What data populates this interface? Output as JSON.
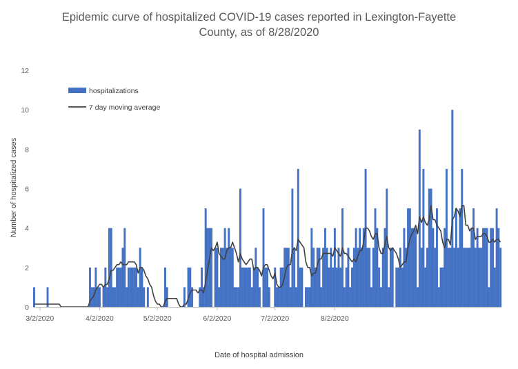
{
  "chart_data": {
    "type": "bar",
    "title_line1": "Epidemic curve of hospitalized COVID-19 cases reported in Lexington-Fayette",
    "title_line2": "County, as of 8/28/2020",
    "xlabel": "Date of hospital admission",
    "ylabel": "Number  of hospitalized cases",
    "ylim": [
      0,
      12
    ],
    "yticks": [
      "0",
      "2",
      "4",
      "6",
      "8",
      "10",
      "12"
    ],
    "grid": false,
    "legend_placement": "top-left",
    "x_start": "2020-02-28",
    "x_tick_labels": [
      "3/2/2020",
      "4/2/2020",
      "5/2/2020",
      "6/2/2020",
      "7/2/2020",
      "8/2/2020"
    ],
    "x_tick_dates": [
      "2020-03-02",
      "2020-04-02",
      "2020-05-02",
      "2020-06-02",
      "2020-07-02",
      "2020-08-02"
    ],
    "series": [
      {
        "name": "hospitalizations",
        "kind": "bar",
        "color": "#4472C4",
        "values": [
          1,
          0,
          0,
          0,
          0,
          0,
          0,
          1,
          0,
          0,
          0,
          0,
          0,
          0,
          0,
          0,
          0,
          0,
          0,
          0,
          0,
          0,
          0,
          0,
          0,
          0,
          0,
          0,
          0,
          2,
          1,
          1,
          2,
          1,
          1,
          0,
          1,
          2,
          1,
          4,
          4,
          1,
          1,
          2,
          2,
          2,
          3,
          4,
          1,
          2,
          2,
          2,
          2,
          2,
          1,
          3,
          2,
          1,
          0,
          1,
          0,
          0,
          0,
          0,
          0,
          0,
          0,
          0,
          2,
          1,
          0,
          0,
          0,
          0,
          0,
          0,
          0,
          0,
          1,
          0,
          2,
          2,
          1,
          0,
          0,
          0,
          1,
          2,
          1,
          5,
          4,
          4,
          4,
          0,
          3,
          3,
          1,
          3,
          3,
          4,
          3,
          4,
          3,
          3,
          1,
          1,
          1,
          6,
          2,
          2,
          2,
          2,
          2,
          1,
          2,
          3,
          2,
          1,
          0,
          5,
          2,
          2,
          1,
          0,
          0,
          2,
          1,
          1,
          2,
          2,
          3,
          3,
          3,
          1,
          6,
          3,
          1,
          7,
          2,
          2,
          0,
          1,
          1,
          1,
          4,
          3,
          2,
          3,
          3,
          1,
          3,
          4,
          3,
          2,
          3,
          2,
          4,
          2,
          3,
          2,
          5,
          1,
          2,
          3,
          1,
          2,
          3,
          4,
          3,
          4,
          3,
          4,
          7,
          3,
          3,
          1,
          3,
          5,
          4,
          2,
          1,
          3,
          4,
          6,
          1,
          3,
          3,
          0,
          2,
          2,
          3,
          2,
          4,
          3,
          5,
          5,
          4,
          4,
          4,
          1,
          9,
          3,
          7,
          2,
          3,
          6,
          6,
          4,
          3,
          5,
          1,
          2,
          2,
          4,
          7,
          3,
          3,
          10,
          3,
          5,
          3,
          5,
          7,
          3,
          3,
          3,
          3,
          4,
          5,
          3,
          4,
          3,
          3,
          4,
          4,
          4,
          1,
          4,
          4,
          2,
          5,
          4,
          3
        ]
      },
      {
        "name": "7 day moving average",
        "kind": "line",
        "color": "#404040"
      }
    ]
  }
}
